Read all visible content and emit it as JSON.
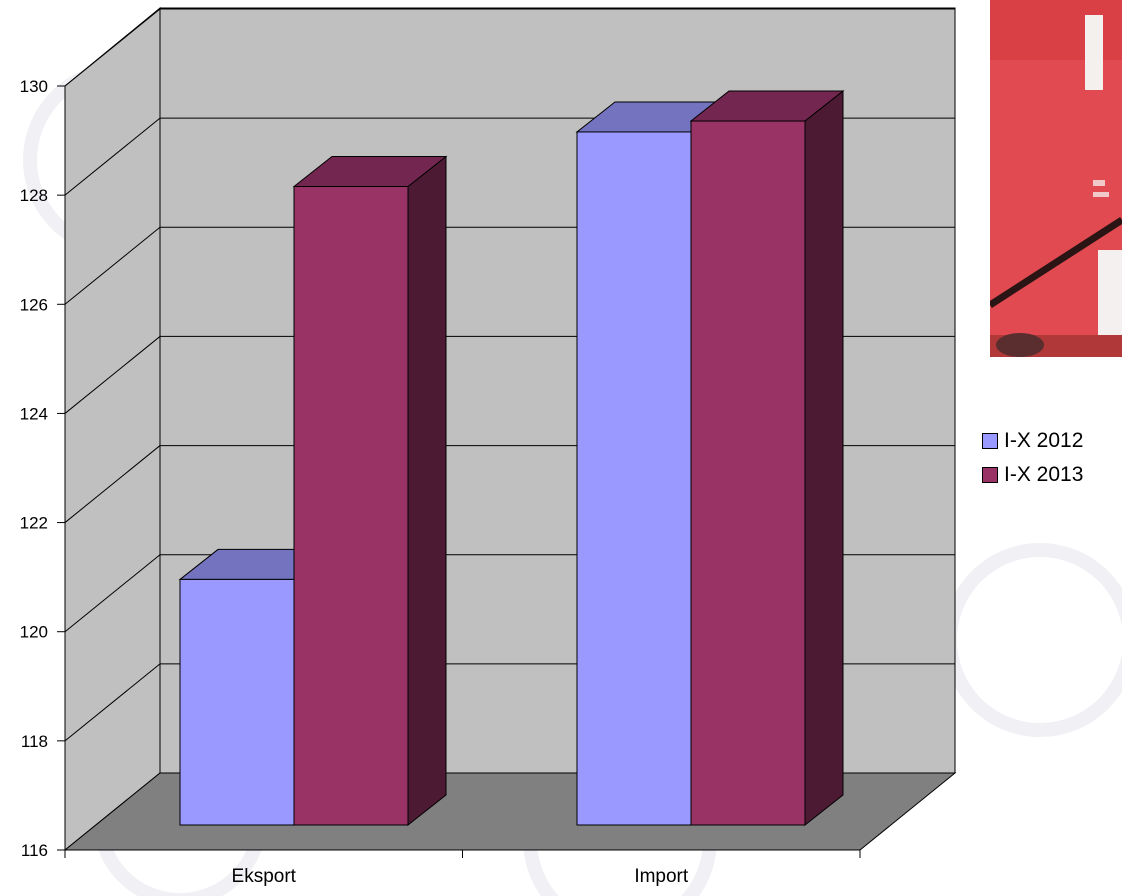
{
  "chart_data": {
    "type": "bar",
    "categories": [
      "Eksport",
      "Import"
    ],
    "series": [
      {
        "name": "I-X 2012",
        "values": [
          120.5,
          128.7
        ],
        "color": "#9999ff"
      },
      {
        "name": "I-X 2013",
        "values": [
          127.7,
          128.9
        ],
        "color": "#993366"
      }
    ],
    "ylim": [
      116,
      130
    ],
    "yticks": [
      "116",
      "118",
      "120",
      "122",
      "124",
      "126",
      "128",
      "130"
    ],
    "grid": true,
    "legend_position": "right",
    "style": "3d-clustered-column",
    "colors": {
      "wall": "#c0c0c0",
      "floor": "#808080",
      "series_2012_front": "#9999ff",
      "series_2012_top": "#7373c0",
      "series_2013_front": "#993366",
      "series_2013_top": "#732650",
      "series_2013_side": "#4d1a33"
    }
  },
  "legend": {
    "items": [
      {
        "label": "I-X 2012",
        "color": "#9999ff"
      },
      {
        "label": "I-X 2013",
        "color": "#993366"
      }
    ]
  }
}
